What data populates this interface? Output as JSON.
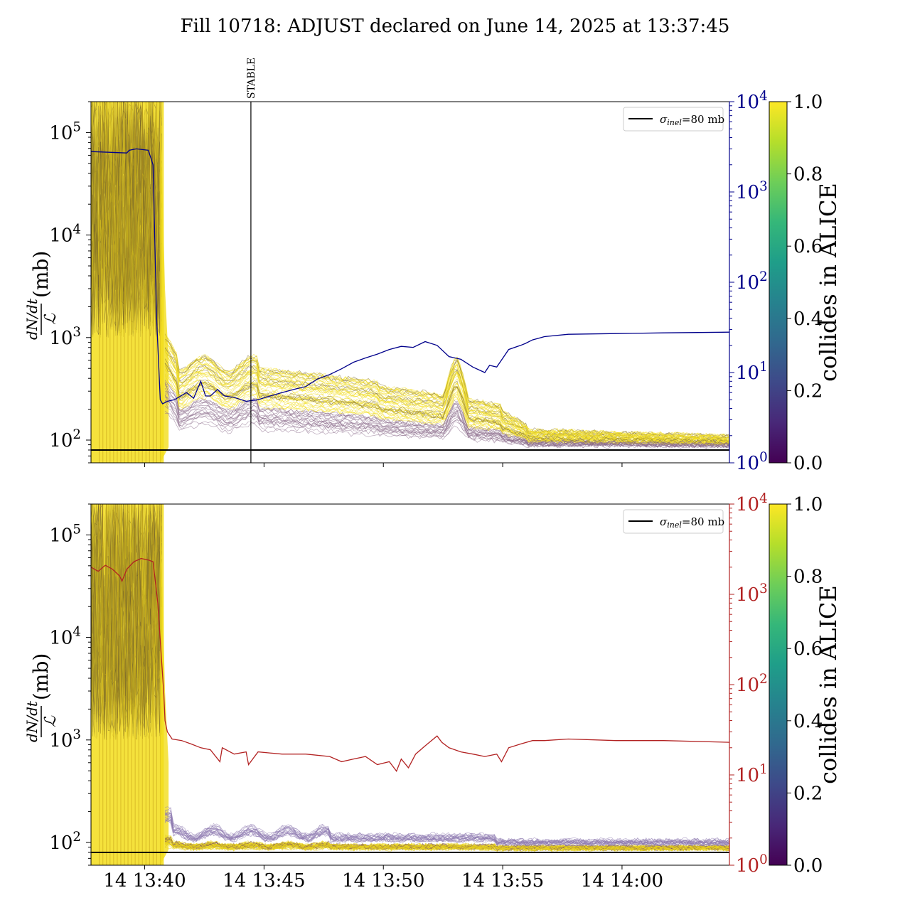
{
  "title": "Fill 10718: ADJUST declared on June 14, 2025 at 13:37:45",
  "colors": {
    "axis": "#000000",
    "left_axis_color_top": "#00008b",
    "left_axis_color_bottom": "#b22222",
    "ref_line": "#000000",
    "viridis": [
      "#440154",
      "#482878",
      "#3e4989",
      "#31688e",
      "#26828e",
      "#1f9e89",
      "#35b779",
      "#6ece58",
      "#b5de2b",
      "#fde725"
    ]
  },
  "chart_data": [
    {
      "type": "line",
      "panel": "top",
      "x_range": [
        "14 13:37:45",
        "14 14:04:30"
      ],
      "ylabel_num": "dN/dt",
      "ylabel_den": "ℒ",
      "ylabel_unit": "(mb)",
      "ylim": [
        60,
        200000
      ],
      "yscale": "log",
      "y_ticks": [
        {
          "v": 100000,
          "label": "10",
          "exp": "5"
        },
        {
          "v": 10000,
          "label": "10",
          "exp": "4"
        },
        {
          "v": 1000,
          "label": "10",
          "exp": "3"
        },
        {
          "v": 100,
          "label": "10",
          "exp": "2"
        }
      ],
      "right_axis": {
        "color": "#00008b",
        "ylim": [
          1,
          10000
        ],
        "yscale": "log",
        "ticks": [
          {
            "v": 10000,
            "label": "10",
            "exp": "4"
          },
          {
            "v": 1000,
            "label": "10",
            "exp": "3"
          },
          {
            "v": 100,
            "label": "10",
            "exp": "2"
          },
          {
            "v": 10,
            "label": "10",
            "exp": "1"
          },
          {
            "v": 1,
            "label": "10",
            "exp": "0"
          }
        ],
        "series": {
          "x_min": [
            0.0,
            1.5,
            1.6,
            1.9,
            2.4,
            2.6,
            2.75,
            2.9,
            3.0,
            3.2,
            3.5,
            4.0,
            4.3,
            4.6,
            4.8,
            5.0,
            5.3,
            5.6,
            6.0,
            6.5,
            7.0,
            7.5,
            8.0,
            8.5,
            9.0,
            9.5,
            10.0,
            10.5,
            11.0,
            11.5,
            12.0,
            12.5,
            13.0,
            13.5,
            14.0,
            14.5,
            15.0,
            15.5,
            16.0,
            16.5,
            16.7,
            17.0,
            17.5,
            18.0,
            18.2,
            18.5,
            19.0,
            20.0,
            22.0,
            24.0,
            26.75
          ],
          "y": [
            2800,
            2700,
            2900,
            3000,
            2900,
            2000,
            40,
            5,
            4.5,
            4.8,
            5.0,
            6.0,
            5.2,
            8.0,
            5.5,
            5.5,
            6.5,
            5.5,
            5.3,
            4.8,
            5.0,
            5.5,
            6.0,
            6.5,
            7.0,
            8.5,
            9.5,
            11.0,
            13.0,
            14.5,
            16.0,
            18.0,
            19.5,
            19.0,
            22.0,
            20.0,
            15.0,
            14.0,
            11.5,
            10.0,
            12.0,
            11.5,
            18.0,
            20.0,
            21.0,
            23.0,
            25.0,
            26.5,
            27.0,
            27.5,
            28.0
          ]
        }
      },
      "reference": {
        "label": "σinel=80 mb",
        "sym": "σ",
        "sub": "inel",
        "rest": "=80 mb",
        "value": 80
      },
      "annotation": {
        "label": "STABLE",
        "x_min": 6.7
      },
      "colorbar": {
        "label": "collides in ALICE",
        "range": [
          0.0,
          1.0
        ],
        "ticks": [
          "0.0",
          "0.2",
          "0.4",
          "0.6",
          "0.8",
          "1.0"
        ]
      }
    },
    {
      "type": "line",
      "panel": "bottom",
      "x_range": [
        "14 13:37:45",
        "14 14:04:30"
      ],
      "x_ticks": [
        {
          "label": "14 13:40",
          "x_min": 2.25
        },
        {
          "label": "14 13:45",
          "x_min": 7.25
        },
        {
          "label": "14 13:50",
          "x_min": 12.25
        },
        {
          "label": "14 13:55",
          "x_min": 17.25
        },
        {
          "label": "14 14:00",
          "x_min": 22.25
        }
      ],
      "ylabel_num": "dN/dt",
      "ylabel_den": "ℒ",
      "ylabel_unit": "(mb)",
      "ylim": [
        60,
        200000
      ],
      "yscale": "log",
      "y_ticks": [
        {
          "v": 100000,
          "label": "10",
          "exp": "5"
        },
        {
          "v": 10000,
          "label": "10",
          "exp": "4"
        },
        {
          "v": 1000,
          "label": "10",
          "exp": "3"
        },
        {
          "v": 100,
          "label": "10",
          "exp": "2"
        }
      ],
      "right_axis": {
        "color": "#b22222",
        "ylim": [
          1,
          10000
        ],
        "yscale": "log",
        "ticks": [
          {
            "v": 10000,
            "label": "10",
            "exp": "4"
          },
          {
            "v": 1000,
            "label": "10",
            "exp": "3"
          },
          {
            "v": 100,
            "label": "10",
            "exp": "2"
          },
          {
            "v": 10,
            "label": "10",
            "exp": "1"
          },
          {
            "v": 1,
            "label": "10",
            "exp": "0"
          }
        ],
        "series": {
          "x_min": [
            0.0,
            0.3,
            0.6,
            0.9,
            1.2,
            1.3,
            1.5,
            1.8,
            2.1,
            2.4,
            2.6,
            2.8,
            2.95,
            3.05,
            3.1,
            3.2,
            3.4,
            3.8,
            4.2,
            4.6,
            5.0,
            5.4,
            5.5,
            6.0,
            6.5,
            6.6,
            7.0,
            8.0,
            9.0,
            10.0,
            10.5,
            11.0,
            11.5,
            12.0,
            12.5,
            12.8,
            13.0,
            13.3,
            13.6,
            14.0,
            14.5,
            14.7,
            15.0,
            15.5,
            16.0,
            16.5,
            17.0,
            17.2,
            17.5,
            18.0,
            18.5,
            19.0,
            20.0,
            22.0,
            24.0,
            26.75
          ],
          "y": [
            2000,
            1800,
            2100,
            1900,
            1600,
            1400,
            1900,
            2300,
            2500,
            2400,
            2300,
            800,
            200,
            80,
            40,
            30,
            25,
            24,
            22,
            20,
            19,
            14,
            20,
            17,
            18,
            13,
            18,
            17,
            17,
            16,
            14,
            15,
            16,
            13,
            14,
            11,
            15,
            12,
            17,
            21,
            27,
            23,
            20,
            18,
            17,
            16,
            17,
            14,
            20,
            22,
            24,
            24,
            25,
            24,
            24,
            23
          ]
        }
      },
      "reference": {
        "label": "σinel=80 mb",
        "sym": "σ",
        "sub": "inel",
        "rest": "=80 mb",
        "value": 80
      },
      "colorbar": {
        "label": "collides in ALICE",
        "range": [
          0.0,
          1.0
        ],
        "ticks": [
          "0.0",
          "0.2",
          "0.4",
          "0.6",
          "0.8",
          "1.0"
        ]
      }
    }
  ]
}
